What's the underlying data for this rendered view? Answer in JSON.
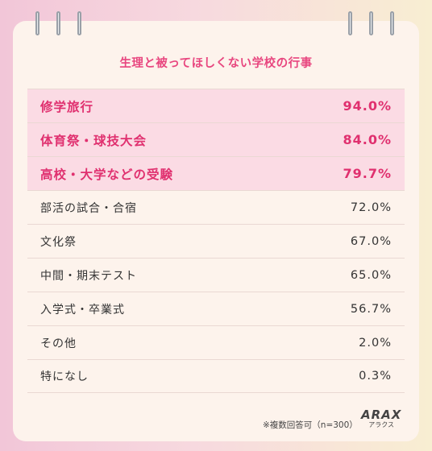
{
  "chart_data": {
    "type": "table",
    "title": "生理と被ってほしくない学校の行事",
    "rows": [
      {
        "label": "修学旅行",
        "value_text": "94.0%",
        "value": 94.0,
        "highlight": true
      },
      {
        "label": "体育祭・球技大会",
        "value_text": "84.0%",
        "value": 84.0,
        "highlight": true
      },
      {
        "label": "高校・大学などの受験",
        "value_text": "79.7%",
        "value": 79.7,
        "highlight": true
      },
      {
        "label": "部活の試合・合宿",
        "value_text": "72.0%",
        "value": 72.0,
        "highlight": false
      },
      {
        "label": "文化祭",
        "value_text": "67.0%",
        "value": 67.0,
        "highlight": false
      },
      {
        "label": "中間・期末テスト",
        "value_text": "65.0%",
        "value": 65.0,
        "highlight": false
      },
      {
        "label": "入学式・卒業式",
        "value_text": "56.7%",
        "value": 56.7,
        "highlight": false
      },
      {
        "label": "その他",
        "value_text": "2.0%",
        "value": 2.0,
        "highlight": false
      },
      {
        "label": "特になし",
        "value_text": "0.3%",
        "value": 0.3,
        "highlight": false
      }
    ],
    "highlight_color": "#e0306f",
    "footnote": "※複数回答可（n=300）"
  },
  "brand": {
    "logo": "ARAX",
    "logo_sub": "アラクス"
  }
}
